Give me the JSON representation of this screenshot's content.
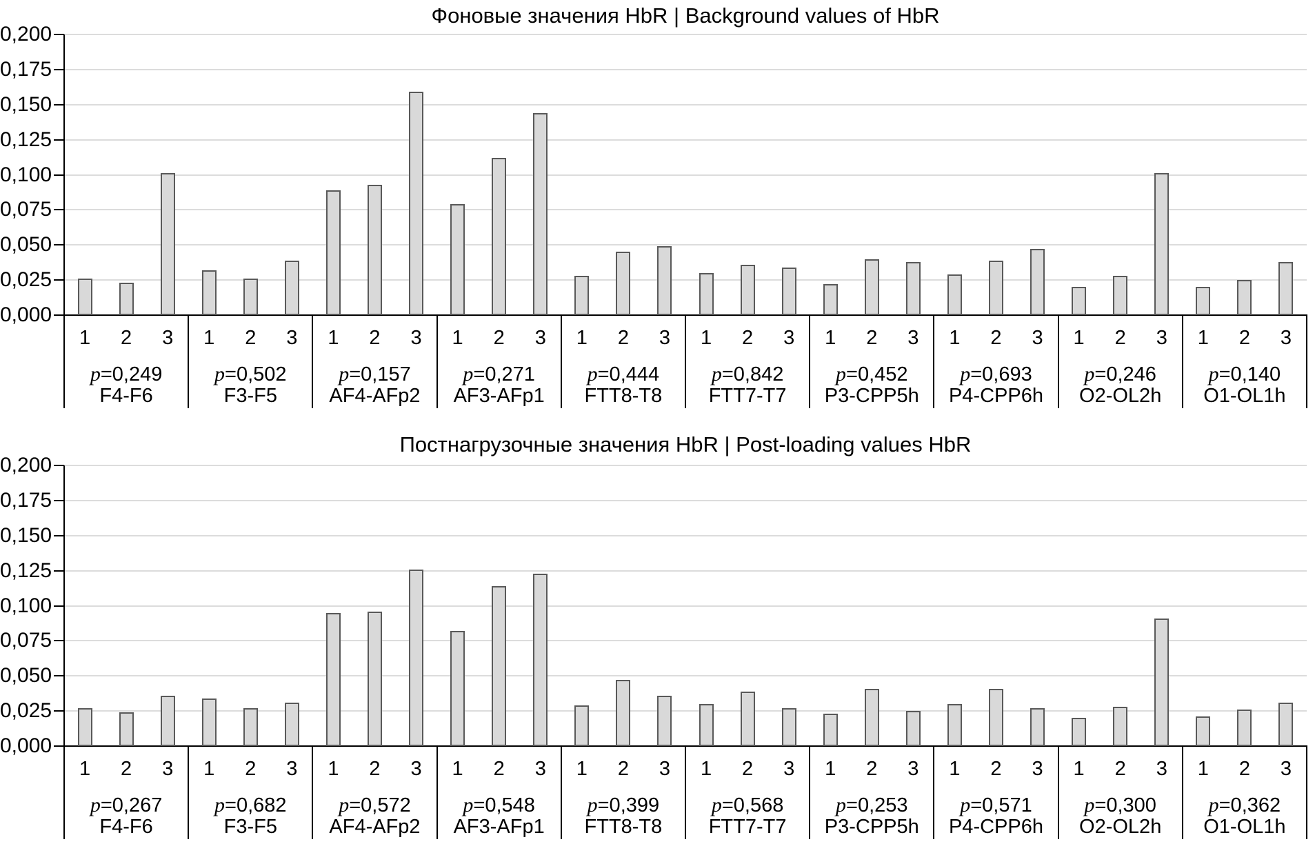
{
  "chart_data": [
    {
      "type": "bar",
      "title": "Фоновые значения HbR | Background values of HbR",
      "xlabel": "",
      "ylabel": "",
      "ylim": [
        0,
        0.2
      ],
      "ytick_step": 0.025,
      "y_tick_labels": [
        "0,000",
        "0,025",
        "0,050",
        "0,075",
        "0,100",
        "0,125",
        "0,150",
        "0,175",
        "0,200"
      ],
      "grid": "horizontal",
      "legend": "none",
      "bar_labels": [
        "1",
        "2",
        "3"
      ],
      "groups": [
        {
          "p_label": "p=0,249",
          "channel": "F4-F6",
          "values": [
            0.026,
            0.023,
            0.101
          ]
        },
        {
          "p_label": "p=0,502",
          "channel": "F3-F5",
          "values": [
            0.032,
            0.026,
            0.039
          ]
        },
        {
          "p_label": "p=0,157",
          "channel": "AF4-AFp2",
          "values": [
            0.089,
            0.093,
            0.159
          ]
        },
        {
          "p_label": "p=0,271",
          "channel": "AF3-AFp1",
          "values": [
            0.079,
            0.112,
            0.144
          ]
        },
        {
          "p_label": "p=0,444",
          "channel": "FTT8-T8",
          "values": [
            0.028,
            0.045,
            0.049
          ]
        },
        {
          "p_label": "p=0,842",
          "channel": "FTT7-T7",
          "values": [
            0.03,
            0.036,
            0.034
          ]
        },
        {
          "p_label": "p=0,452",
          "channel": "P3-CPP5h",
          "values": [
            0.022,
            0.04,
            0.038
          ]
        },
        {
          "p_label": "p=0,693",
          "channel": "P4-CPP6h",
          "values": [
            0.029,
            0.039,
            0.047
          ]
        },
        {
          "p_label": "p=0,246",
          "channel": "O2-OL2h",
          "values": [
            0.02,
            0.028,
            0.101
          ]
        },
        {
          "p_label": "p=0,140",
          "channel": "O1-OL1h",
          "values": [
            0.02,
            0.025,
            0.038
          ]
        }
      ]
    },
    {
      "type": "bar",
      "title": "Постнагрузочные значения HbR | Post-loading values HbR",
      "xlabel": "",
      "ylabel": "",
      "ylim": [
        0,
        0.2
      ],
      "ytick_step": 0.025,
      "y_tick_labels": [
        "0,000",
        "0,025",
        "0,050",
        "0,075",
        "0,100",
        "0,125",
        "0,150",
        "0,175",
        "0,200"
      ],
      "grid": "horizontal",
      "legend": "none",
      "bar_labels": [
        "1",
        "2",
        "3"
      ],
      "groups": [
        {
          "p_label": "p=0,267",
          "channel": "F4-F6",
          "values": [
            0.027,
            0.024,
            0.036
          ]
        },
        {
          "p_label": "p=0,682",
          "channel": "F3-F5",
          "values": [
            0.034,
            0.027,
            0.031
          ]
        },
        {
          "p_label": "p=0,572",
          "channel": "AF4-AFp2",
          "values": [
            0.095,
            0.096,
            0.126
          ]
        },
        {
          "p_label": "p=0,548",
          "channel": "AF3-AFp1",
          "values": [
            0.082,
            0.114,
            0.123
          ]
        },
        {
          "p_label": "p=0,399",
          "channel": "FTT8-T8",
          "values": [
            0.029,
            0.047,
            0.036
          ]
        },
        {
          "p_label": "p=0,568",
          "channel": "FTT7-T7",
          "values": [
            0.03,
            0.039,
            0.027
          ]
        },
        {
          "p_label": "p=0,253",
          "channel": "P3-CPP5h",
          "values": [
            0.023,
            0.041,
            0.025
          ]
        },
        {
          "p_label": "p=0,571",
          "channel": "P4-CPP6h",
          "values": [
            0.03,
            0.041,
            0.027
          ]
        },
        {
          "p_label": "p=0,300",
          "channel": "O2-OL2h",
          "values": [
            0.02,
            0.028,
            0.091
          ]
        },
        {
          "p_label": "p=0,362",
          "channel": "O1-OL1h",
          "values": [
            0.021,
            0.026,
            0.031
          ]
        }
      ]
    }
  ]
}
